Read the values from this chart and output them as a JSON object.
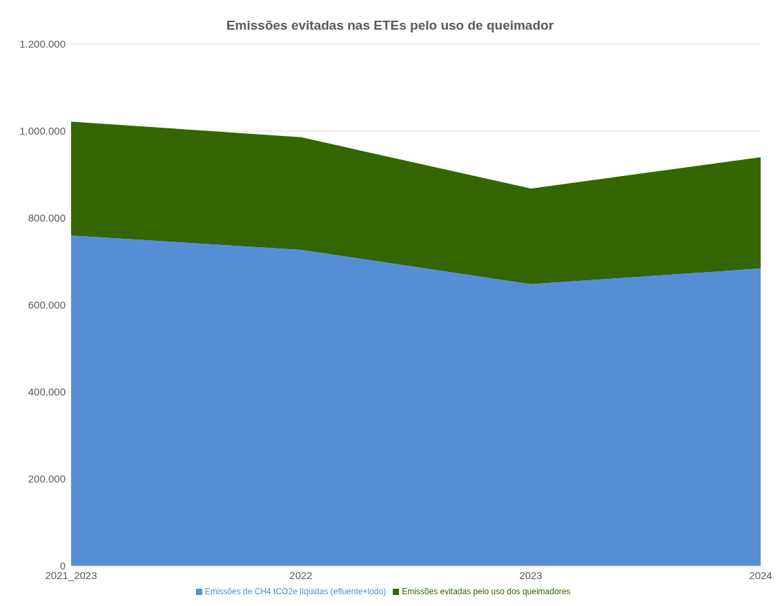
{
  "chart_data": {
    "type": "area",
    "title": "Emissões evitadas nas ETEs pelo uso de queimador",
    "categories": [
      "2021_2023",
      "2022",
      "2023",
      "2024"
    ],
    "stacked": true,
    "series": [
      {
        "name": "Emissões de CH4 tCO2e líquidas (efluente+lodo)",
        "color": "#558ed5",
        "values": [
          760000,
          727000,
          648000,
          684000
        ]
      },
      {
        "name": "Emissões evitadas pelo uso dos queimadores",
        "color": "#336600",
        "values": [
          262000,
          259000,
          220000,
          256000
        ]
      }
    ],
    "ylim": [
      0,
      1200000
    ],
    "yticks": [
      {
        "value": 0,
        "label": "0"
      },
      {
        "value": 200000,
        "label": "200.000"
      },
      {
        "value": 400000,
        "label": "400.000"
      },
      {
        "value": 600000,
        "label": "600.000"
      },
      {
        "value": 800000,
        "label": "800.000"
      },
      {
        "value": 1000000,
        "label": "1.000.000"
      },
      {
        "value": 1200000,
        "label": "1.200.000"
      }
    ],
    "grid": "y",
    "legend": "bottom"
  }
}
